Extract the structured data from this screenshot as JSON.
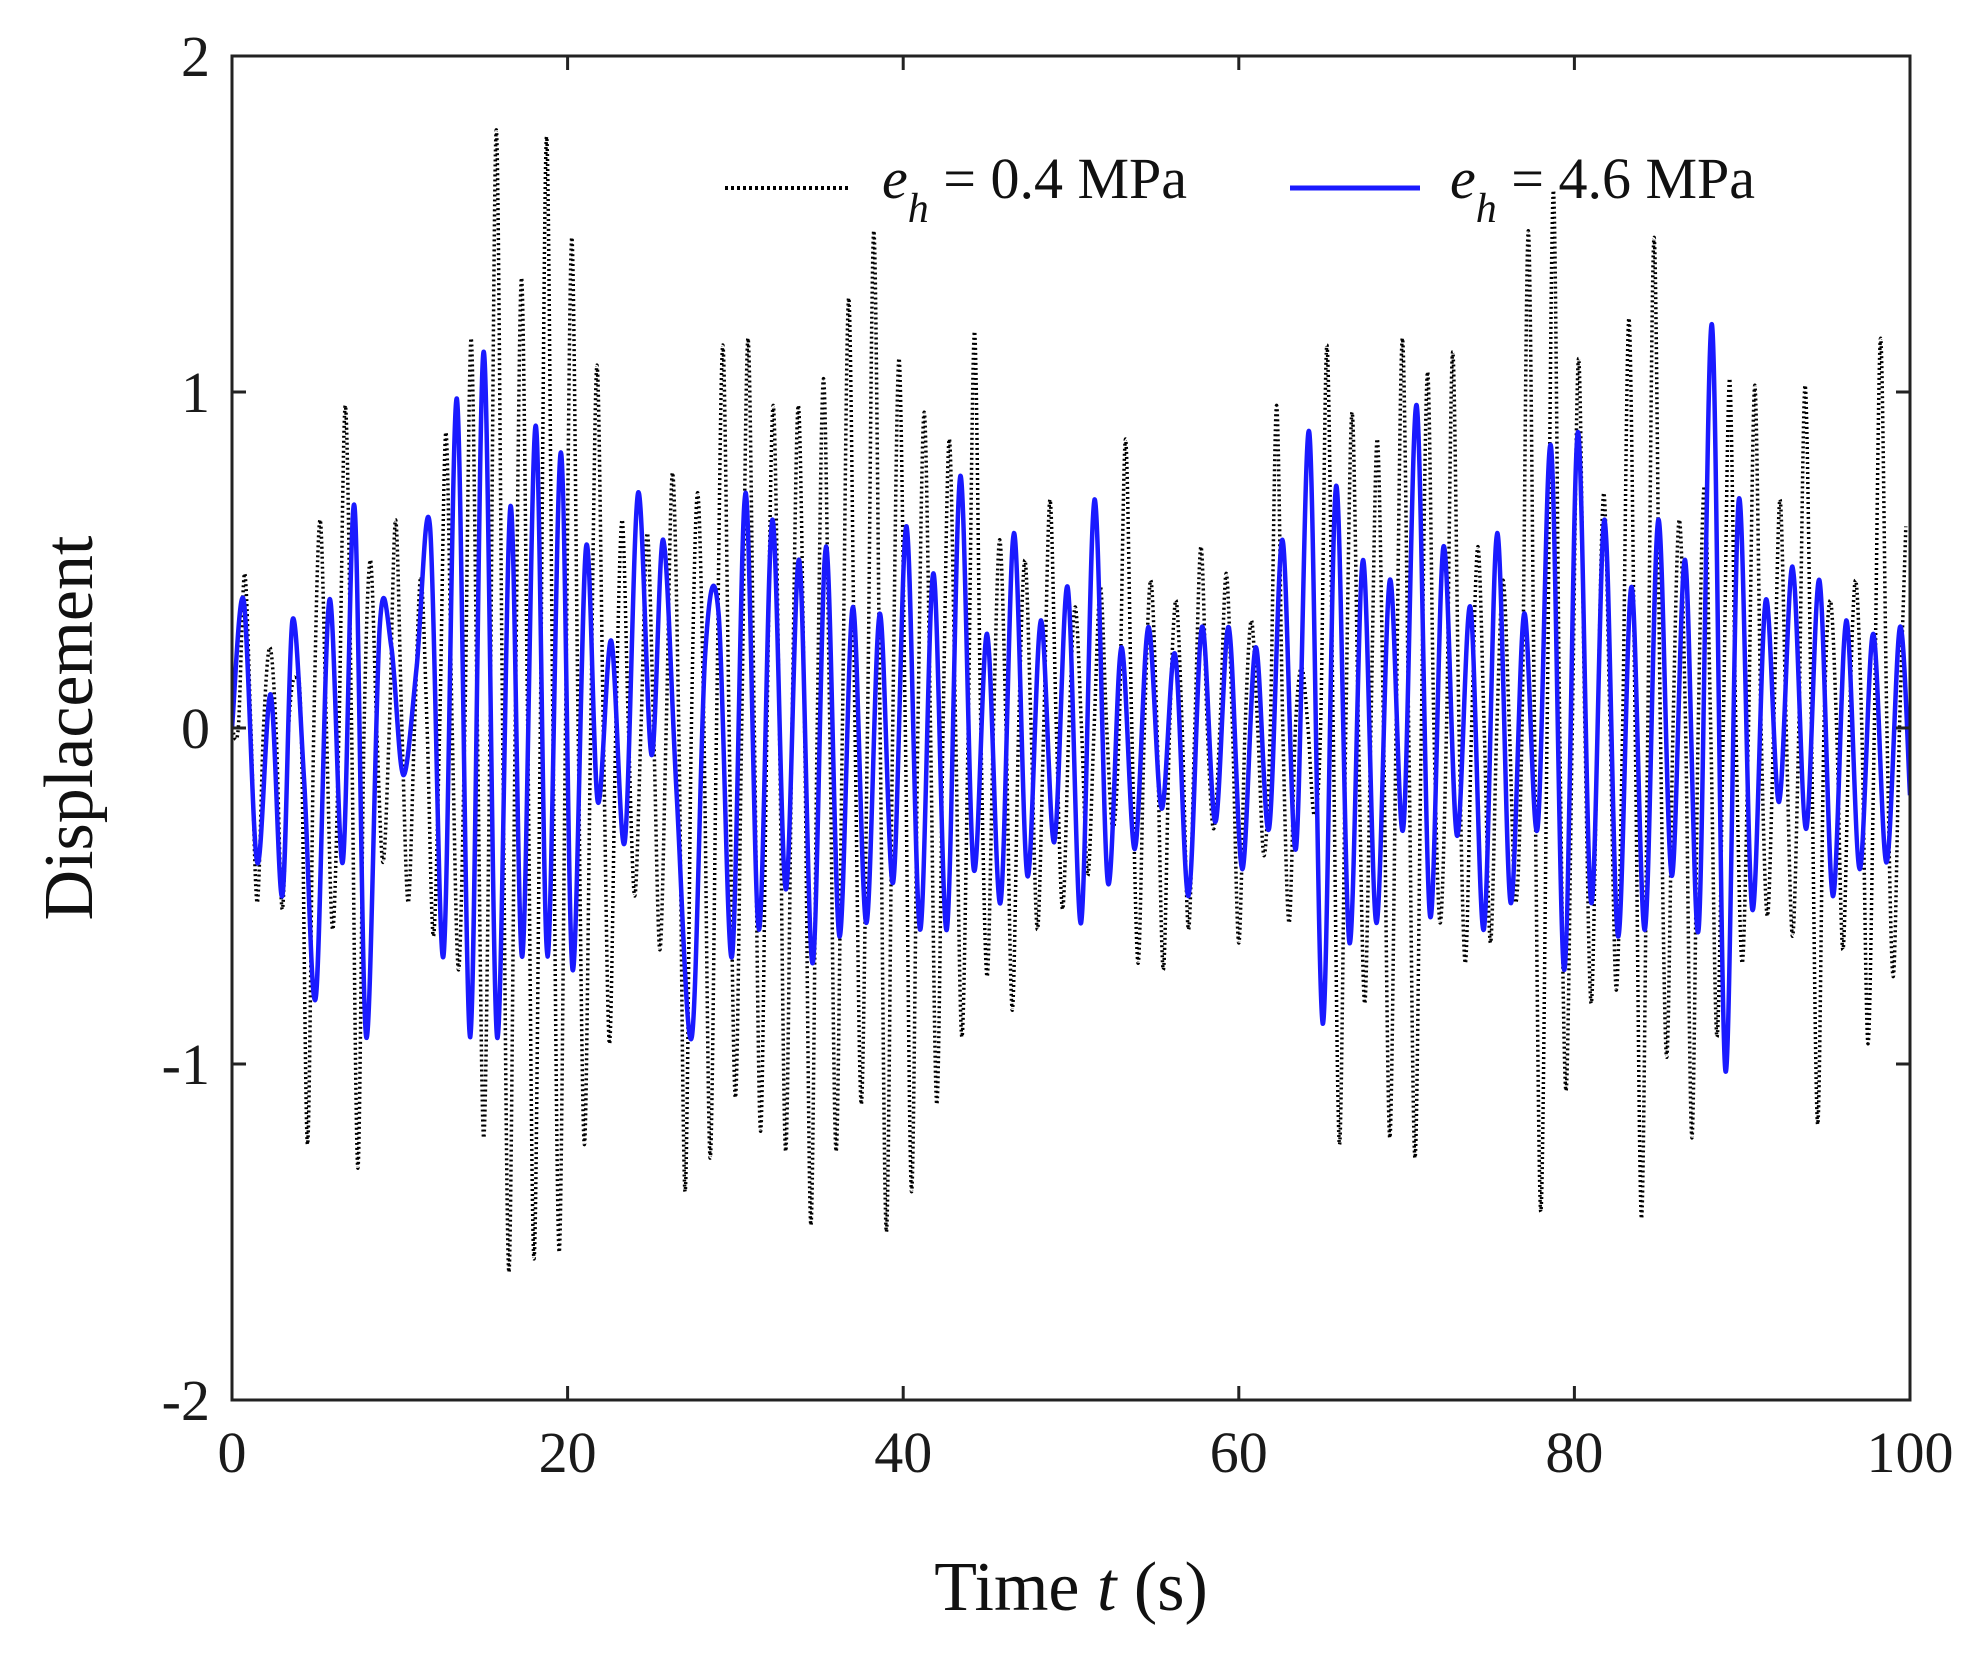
{
  "chart_data": {
    "type": "line",
    "title": "",
    "xlabel": {
      "prefix": "Time ",
      "var": "t",
      "suffix": " (s)"
    },
    "ylabel": "Displacement",
    "xlim": [
      0,
      100
    ],
    "ylim": [
      -2,
      2
    ],
    "xticks": [
      0,
      20,
      40,
      60,
      80,
      100
    ],
    "yticks": [
      -2,
      -1,
      0,
      1,
      2
    ],
    "xtick_labels": [
      "0",
      "20",
      "40",
      "60",
      "80",
      "100"
    ],
    "ytick_labels": [
      "-2",
      "-1",
      "0",
      "1",
      "2"
    ],
    "grid": false,
    "legend_position": "top-right",
    "series": [
      {
        "name": "e_h = 0.4 MPa",
        "legend": {
          "sym": "e",
          "sub": "h",
          "rest": " = 0.4 MPa"
        },
        "color": "#000000",
        "style": "dotted",
        "x": [
          0,
          0.75,
          1.5,
          2.25,
          3.0,
          3.75,
          4.5,
          5.25,
          6.0,
          6.75,
          7.5,
          8.25,
          9.0,
          9.75,
          10.5,
          11.25,
          12.0,
          12.75,
          13.5,
          14.25,
          15.0,
          15.75,
          16.5,
          17.25,
          18.0,
          18.75,
          19.5,
          20.25,
          21.0,
          21.75,
          22.5,
          23.25,
          24.0,
          24.75,
          25.5,
          26.25,
          27.0,
          27.75,
          28.5,
          29.25,
          30.0,
          30.75,
          31.5,
          32.25,
          33.0,
          33.75,
          34.5,
          35.25,
          36.0,
          36.75,
          37.5,
          38.25,
          39.0,
          39.75,
          40.5,
          41.25,
          42.0,
          42.75,
          43.5,
          44.25,
          45.0,
          45.75,
          46.5,
          47.25,
          48.0,
          48.75,
          49.5,
          50.25,
          51.0,
          51.75,
          52.5,
          53.25,
          54.0,
          54.75,
          55.5,
          56.25,
          57.0,
          57.75,
          58.5,
          59.25,
          60.0,
          60.75,
          61.5,
          62.25,
          63.0,
          63.75,
          64.5,
          65.25,
          66.0,
          66.75,
          67.5,
          68.25,
          69.0,
          69.75,
          70.5,
          71.25,
          72.0,
          72.75,
          73.5,
          74.25,
          75.0,
          75.75,
          76.5,
          77.25,
          78.0,
          78.75,
          79.5,
          80.25,
          81.0,
          81.75,
          82.5,
          83.25,
          84.0,
          84.75,
          85.5,
          86.25,
          87.0,
          87.75,
          88.5,
          89.25,
          90.0,
          90.75,
          91.5,
          92.25,
          93.0,
          93.75,
          94.5,
          95.25,
          96.0,
          96.75,
          97.5,
          98.25,
          99.0,
          99.75
        ],
        "y": [
          0,
          0.46,
          -0.52,
          0.24,
          -0.54,
          0.15,
          -1.24,
          0.62,
          -0.6,
          0.96,
          -1.31,
          0.5,
          -0.4,
          0.62,
          -0.52,
          0.45,
          -0.62,
          0.88,
          -0.72,
          1.16,
          -1.22,
          1.78,
          -1.62,
          1.34,
          -1.58,
          1.76,
          -1.56,
          1.46,
          -1.24,
          1.08,
          -0.94,
          0.62,
          -0.5,
          0.58,
          -0.66,
          0.76,
          -1.38,
          0.7,
          -1.28,
          1.14,
          -1.1,
          1.16,
          -1.2,
          0.96,
          -1.26,
          0.96,
          -1.48,
          1.04,
          -1.26,
          1.28,
          -1.12,
          1.48,
          -1.5,
          1.1,
          -1.38,
          0.94,
          -1.12,
          0.86,
          -0.92,
          1.18,
          -0.74,
          0.56,
          -0.84,
          0.5,
          -0.6,
          0.68,
          -0.54,
          0.36,
          -0.44,
          0.42,
          -0.3,
          0.86,
          -0.7,
          0.44,
          -0.72,
          0.38,
          -0.6,
          0.54,
          -0.3,
          0.46,
          -0.64,
          0.32,
          -0.38,
          0.96,
          -0.58,
          0.18,
          -0.26,
          1.14,
          -1.24,
          0.94,
          -0.82,
          0.86,
          -1.22,
          1.16,
          -1.28,
          1.06,
          -0.58,
          1.12,
          -0.7,
          0.54,
          -0.64,
          0.44,
          -0.52,
          1.48,
          -1.44,
          1.6,
          -1.08,
          1.1,
          -0.82,
          0.7,
          -0.78,
          1.22,
          -1.46,
          1.46,
          -0.98,
          0.62,
          -1.22,
          0.72,
          -0.92,
          1.04,
          -0.7,
          1.02,
          -0.56,
          0.68,
          -0.62,
          1.02,
          -1.18,
          0.38,
          -0.66,
          0.44,
          -0.94,
          1.16,
          -0.74,
          0.6
        ],
        "zero_crossings": [
          0.0,
          0.375,
          1.125,
          1.875,
          2.625,
          3.375,
          4.125,
          4.875,
          5.625,
          6.375,
          7.125,
          7.875,
          8.625,
          9.375,
          10.125,
          10.875,
          11.625,
          12.375,
          13.125,
          13.875,
          14.625,
          15.375,
          16.125,
          16.875,
          17.625,
          18.375,
          19.125,
          19.875,
          20.625,
          21.375,
          22.125,
          22.875,
          23.625,
          24.375,
          25.125,
          25.875,
          26.625,
          27.375,
          28.125,
          28.875,
          29.625,
          30.375,
          31.125,
          31.875,
          32.625,
          33.375,
          34.125,
          34.875,
          35.625,
          36.375,
          37.125,
          37.875,
          38.625,
          39.375,
          40.125,
          40.875,
          41.625,
          42.375,
          43.125,
          43.875,
          44.625,
          45.375,
          46.125,
          46.875,
          47.625,
          48.375,
          49.125,
          49.875,
          50.625,
          51.375,
          52.125,
          52.875,
          53.625,
          54.375,
          55.125,
          55.875,
          56.625,
          57.375,
          58.125,
          58.875,
          59.625,
          60.375,
          61.125,
          61.875,
          62.625,
          63.375,
          64.125,
          64.875,
          65.625,
          66.375,
          67.125,
          67.875,
          68.625,
          69.375,
          70.125,
          70.875,
          71.625,
          72.375,
          73.125,
          73.875,
          74.625,
          75.375,
          76.125,
          76.875,
          77.625,
          78.375,
          79.125,
          79.875,
          80.625,
          81.375,
          82.125,
          82.875,
          83.625,
          84.375,
          85.125,
          85.875,
          86.625,
          87.375,
          88.125,
          88.875,
          89.625,
          90.375,
          91.125,
          91.875,
          92.625,
          93.375,
          94.125,
          94.875,
          95.625,
          96.375,
          97.125,
          97.875,
          98.625,
          99.375
        ]
      },
      {
        "name": "e_h = 4.6 MPa",
        "legend": {
          "sym": "e",
          "sub": "h",
          "rest": " = 4.6 MPa"
        },
        "color": "#1a1aff",
        "style": "solid",
        "x": [
          0,
          0.7,
          1.5,
          2.3,
          3.0,
          3.6,
          4.3,
          5.0,
          5.8,
          6.6,
          7.3,
          8.0,
          8.8,
          9.5,
          10.2,
          11.0,
          11.8,
          12.6,
          13.4,
          14.2,
          15.0,
          15.8,
          16.6,
          17.3,
          18.1,
          18.8,
          19.6,
          20.3,
          21.1,
          21.8,
          22.6,
          23.4,
          24.2,
          25.0,
          25.7,
          26.5,
          27.4,
          28.2,
          29.0,
          29.8,
          30.6,
          31.4,
          32.2,
          33.0,
          33.8,
          34.6,
          35.4,
          36.2,
          37.0,
          37.8,
          38.6,
          39.4,
          40.2,
          41.0,
          41.8,
          42.6,
          43.4,
          44.2,
          45.0,
          45.8,
          46.6,
          47.4,
          48.2,
          49.0,
          49.8,
          50.6,
          51.4,
          52.2,
          53.0,
          53.8,
          54.6,
          55.4,
          56.2,
          57.0,
          57.8,
          58.6,
          59.4,
          60.2,
          61.0,
          61.8,
          62.6,
          63.4,
          64.2,
          65.0,
          65.8,
          66.6,
          67.4,
          68.2,
          69.0,
          69.8,
          70.6,
          71.4,
          72.2,
          73.0,
          73.8,
          74.6,
          75.4,
          76.2,
          77.0,
          77.8,
          78.6,
          79.4,
          80.2,
          81.0,
          81.8,
          82.6,
          83.4,
          84.2,
          85.0,
          85.8,
          86.6,
          87.4,
          88.2,
          89.0,
          89.8,
          90.6,
          91.4,
          92.2,
          93.0,
          93.8,
          94.6,
          95.4,
          96.2,
          97.0,
          97.8,
          98.6,
          99.4,
          100.0
        ],
        "y": [
          0,
          0.38,
          -0.4,
          0.1,
          -0.5,
          0.32,
          -0.16,
          -0.8,
          0.38,
          -0.4,
          0.66,
          -0.92,
          0.3,
          0.24,
          -0.14,
          0.18,
          0.6,
          -0.68,
          0.98,
          -0.92,
          1.12,
          -0.92,
          0.66,
          -0.68,
          0.9,
          -0.68,
          0.82,
          -0.72,
          0.54,
          -0.22,
          0.26,
          -0.34,
          0.7,
          -0.08,
          0.56,
          -0.2,
          -0.92,
          0.22,
          0.34,
          -0.68,
          0.7,
          -0.6,
          0.62,
          -0.48,
          0.5,
          -0.7,
          0.54,
          -0.62,
          0.36,
          -0.58,
          0.34,
          -0.46,
          0.6,
          -0.6,
          0.46,
          -0.6,
          0.75,
          -0.42,
          0.28,
          -0.52,
          0.58,
          -0.44,
          0.32,
          -0.34,
          0.42,
          -0.58,
          0.68,
          -0.46,
          0.24,
          -0.36,
          0.3,
          -0.24,
          0.22,
          -0.5,
          0.3,
          -0.28,
          0.3,
          -0.42,
          0.24,
          -0.3,
          0.56,
          -0.36,
          0.88,
          -0.88,
          0.72,
          -0.64,
          0.5,
          -0.58,
          0.44,
          -0.3,
          0.96,
          -0.56,
          0.54,
          -0.32,
          0.36,
          -0.6,
          0.58,
          -0.52,
          0.34,
          -0.3,
          0.84,
          -0.72,
          0.88,
          -0.52,
          0.62,
          -0.62,
          0.42,
          -0.6,
          0.62,
          -0.44,
          0.5,
          -0.6,
          1.2,
          -1.02,
          0.68,
          -0.54,
          0.38,
          -0.22,
          0.48,
          -0.3,
          0.44,
          -0.5,
          0.32,
          -0.42,
          0.28,
          -0.4,
          0.3,
          -0.2
        ]
      }
    ]
  }
}
